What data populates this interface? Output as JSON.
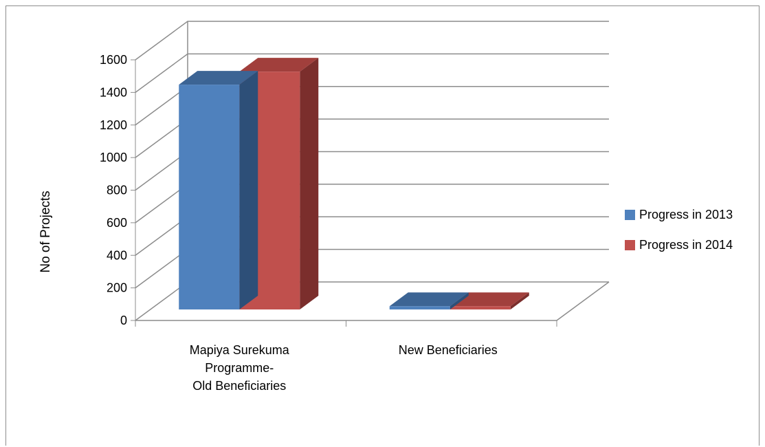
{
  "chart_data": {
    "type": "bar",
    "bar_style": "3d-clustered-column",
    "title": "",
    "ylabel": "No of Projects",
    "xlabel": "",
    "categories": [
      [
        "Mapiya Surekuma",
        "Programme-",
        "Old Beneficiaries"
      ],
      [
        "New Beneficiaries"
      ]
    ],
    "series": [
      {
        "name": "Progress in 2013",
        "values": [
          1380,
          20
        ],
        "color": "#4f81bd",
        "top_color": "#3c6494",
        "side_color": "#2d4f78"
      },
      {
        "name": "Progress in 2014",
        "values": [
          1460,
          20
        ],
        "color": "#c0504d",
        "top_color": "#a13f3c",
        "side_color": "#7b2e2c"
      }
    ],
    "ylim": [
      0,
      1600
    ],
    "yticks": [
      0,
      200,
      400,
      600,
      800,
      1000,
      1200,
      1400,
      1600
    ],
    "grid": true,
    "legend_position": "right"
  }
}
